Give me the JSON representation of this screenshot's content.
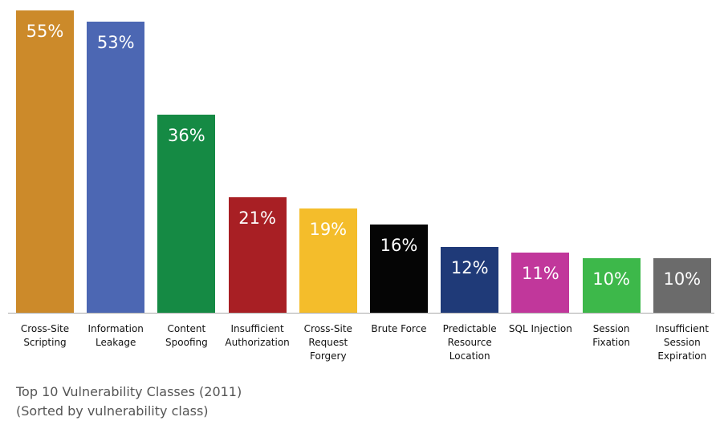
{
  "chart_data": {
    "type": "bar",
    "title": "Top 10 Vulnerability Classes (2011)",
    "subtitle": "(Sorted by vulnerability class)",
    "categories": [
      "Cross-Site Scripting",
      "Information Leakage",
      "Content Spoofing",
      "Insufficient Authorization",
      "Cross-Site Request Forgery",
      "Brute Force",
      "Predictable Resource Location",
      "SQL Injection",
      "Session Fixation",
      "Insufficient Session Expiration"
    ],
    "values": [
      55,
      53,
      36,
      21,
      19,
      16,
      12,
      11,
      10,
      10
    ],
    "value_labels": [
      "55%",
      "53%",
      "36%",
      "21%",
      "19%",
      "16%",
      "12%",
      "11%",
      "10%",
      "10%"
    ],
    "colors": [
      "#cc8a2a",
      "#4c67b3",
      "#158a44",
      "#a81f24",
      "#f4bd2b",
      "#050505",
      "#1f3a78",
      "#c1379b",
      "#3db84a",
      "#6b6b6b"
    ]
  }
}
